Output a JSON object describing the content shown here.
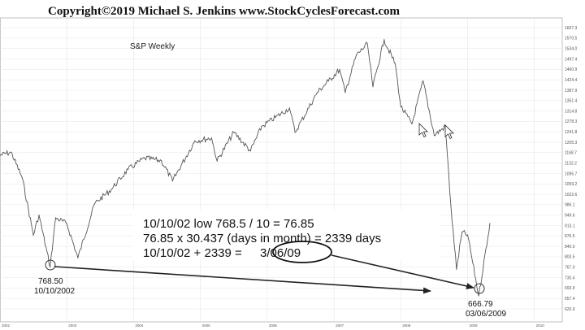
{
  "chart_data": {
    "type": "line",
    "title": "Copyright©2019 Michael S. Jenkins www.StockCyclesForecast.com",
    "subtitle": "S&P Weekly",
    "y_ticks": [
      "1607.3",
      "1570.5",
      "1534.0",
      "1497.4",
      "1460.9",
      "1424.4",
      "1387.9",
      "1351.4",
      "1314.8",
      "1278.3",
      "1241.8",
      "1205.3",
      "1168.7",
      "1132.2",
      "1095.7",
      "1059.2",
      "1022.6",
      "986.1",
      "949.6",
      "913.1",
      "876.5",
      "840.0",
      "803.5",
      "767.0",
      "730.4",
      "693.9",
      "657.4",
      "620.9"
    ],
    "ylim": [
      620.9,
      1607.3
    ],
    "x_ticks": [
      "2002",
      "2003",
      "2004",
      "2005",
      "2006",
      "2007",
      "2008",
      "2009",
      "2010"
    ],
    "x_range": [
      "2002-01",
      "2010-06"
    ],
    "series": [
      {
        "x": [
          "2002-01",
          "2002-03",
          "2002-05",
          "2002-07",
          "2002-08",
          "2002-10",
          "2002-11",
          "2003-01",
          "2003-03",
          "2003-06",
          "2003-09",
          "2003-12",
          "2004-03",
          "2004-06",
          "2004-08",
          "2004-12",
          "2005-03",
          "2005-04",
          "2005-07",
          "2005-10",
          "2005-12",
          "2006-05",
          "2006-06",
          "2006-10",
          "2006-12",
          "2007-02",
          "2007-03",
          "2007-05",
          "2007-07",
          "2007-08",
          "2007-10",
          "2007-12",
          "2008-01",
          "2008-03",
          "2008-05",
          "2008-07",
          "2008-09",
          "2008-10",
          "2008-11",
          "2008-12",
          "2009-01",
          "2009-03",
          "2009-05"
        ],
        "values": [
          1160,
          1170,
          1080,
          880,
          950,
          768.5,
          940,
          920,
          800,
          990,
          1040,
          1110,
          1150,
          1140,
          1070,
          1210,
          1220,
          1140,
          1240,
          1175,
          1260,
          1325,
          1240,
          1380,
          1420,
          1460,
          1380,
          1510,
          1550,
          1400,
          1565,
          1480,
          1330,
          1270,
          1420,
          1230,
          1260,
          980,
          760,
          890,
          880,
          666.79,
          920
        ]
      }
    ],
    "annotations": {
      "calc_line1": "10/10/02 low 768.5 / 10 = 76.85",
      "calc_line2": "76.85 x 30.437 (days in month) = 2339 days",
      "calc_line3_prefix": "10/10/02 + 2339 = ",
      "calc_line3_date": "3/06/09",
      "low1_value": "768.50",
      "low1_date": "10/10/2002",
      "low2_value": "666.79",
      "low2_date": "03/06/2009"
    }
  }
}
